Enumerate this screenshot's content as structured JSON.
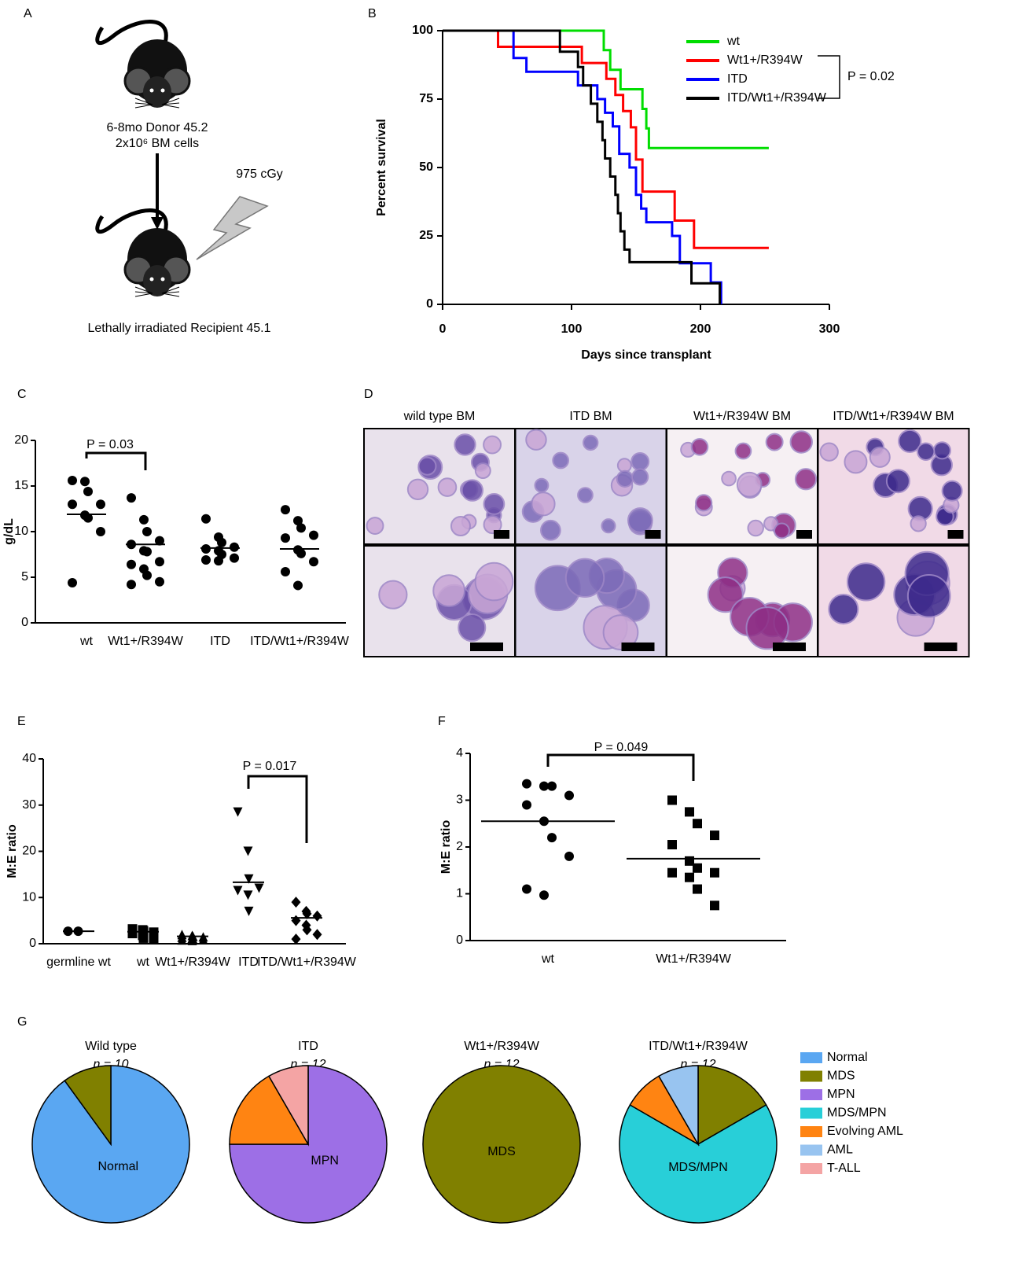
{
  "panel_labels": [
    "A",
    "B",
    "C",
    "D",
    "E",
    "F",
    "G"
  ],
  "schematic": {
    "donor": "6-8mo Donor 45.2",
    "cells": "2x10⁶ BM cells",
    "dose": "975 cGy",
    "recipient": "Lethally irradiated Recipient 45.1"
  },
  "micrographs": {
    "columns": [
      "wild type BM",
      "ITD BM",
      "Wt1+/R394W BM",
      "ITD/Wt1+/R394W BM"
    ]
  },
  "pie_legend": {
    "categories": [
      "Normal",
      "MDS",
      "MPN",
      "MDS/MPN",
      "Evolving AML",
      "AML",
      "T-ALL"
    ],
    "colors": [
      "#5aa7f2",
      "#808000",
      "#9d6fe6",
      "#28cfd8",
      "#ff8412",
      "#98c4f0",
      "#f4a4a4"
    ]
  },
  "chart_data": [
    {
      "type": "step",
      "xlabel": "Days since transplant",
      "ylabel": "Percent survival",
      "xlim": [
        0,
        300
      ],
      "xticks": [
        0,
        100,
        200,
        300
      ],
      "ylim": [
        0,
        100
      ],
      "yticks": [
        0,
        25,
        50,
        75,
        100
      ],
      "annotation": "P = 0.02",
      "series": [
        {
          "name": "wt",
          "color": "#00dd00",
          "x": [
            0,
            125,
            130,
            138,
            155,
            158,
            160,
            253
          ],
          "values": [
            100,
            92.9,
            85.7,
            78.6,
            71.4,
            64.3,
            57.1,
            57.1
          ]
        },
        {
          "name": "Wt1+/R394W",
          "color": "#ff0000",
          "x": [
            0,
            43,
            108,
            127,
            134,
            140,
            146,
            150,
            155,
            180,
            195,
            253
          ],
          "values": [
            100,
            94.1,
            88.2,
            82.4,
            76.5,
            70.6,
            64.7,
            52.9,
            41.2,
            30.6,
            20.6,
            20.6
          ]
        },
        {
          "name": "ITD",
          "color": "#0000ff",
          "x": [
            0,
            55,
            65,
            105,
            120,
            126,
            132,
            137,
            145,
            150,
            154,
            158,
            178,
            184,
            208,
            216
          ],
          "values": [
            100,
            90,
            85,
            80,
            75,
            70,
            65,
            55,
            50,
            40,
            35,
            30,
            25,
            15,
            8,
            0
          ]
        },
        {
          "name": "ITD/Wt1+/R394W",
          "color": "#000000",
          "x": [
            0,
            91,
            105,
            109,
            115,
            120,
            124,
            126,
            130,
            134,
            136,
            138,
            141,
            145,
            193,
            215
          ],
          "values": [
            100,
            92.3,
            86.7,
            80,
            73.3,
            66.7,
            60,
            53.3,
            46.7,
            40,
            33.3,
            26.7,
            20,
            15.4,
            7.7,
            0
          ]
        }
      ]
    },
    {
      "type": "strip",
      "ylabel": "g/dL",
      "ylim": [
        0,
        20
      ],
      "yticks": [
        0,
        5,
        10,
        15,
        20
      ],
      "categories": [
        "wt",
        "Wt1+/R394W",
        "ITD",
        "ITD/Wt1+/R394W"
      ],
      "values": [
        [
          15.6,
          15.5,
          14.4,
          13.0,
          13.0,
          11.8,
          11.5,
          10.0,
          4.4
        ],
        [
          13.7,
          11.3,
          10.0,
          9.0,
          8.6,
          7.9,
          7.8,
          6.7,
          6.4,
          5.9,
          5.2,
          4.5,
          4.2
        ],
        [
          11.4,
          9.4,
          8.8,
          8.3,
          8.1,
          7.9,
          7.5,
          7.1,
          6.9,
          6.8
        ],
        [
          12.4,
          11.2,
          10.4,
          9.6,
          9.3,
          8.0,
          7.6,
          6.7,
          5.6,
          4.1
        ]
      ],
      "means": [
        11.9,
        8.6,
        8.2,
        8.1
      ],
      "markers": [
        "circle",
        "circle",
        "circle",
        "circle"
      ],
      "color": "#000000",
      "annotation": "P = 0.03"
    },
    {
      "type": "strip",
      "ylabel": "M:E ratio",
      "ylim": [
        0,
        40
      ],
      "yticks": [
        0,
        10,
        20,
        30,
        40
      ],
      "categories": [
        "germline wt",
        "wt",
        "Wt1+/R394W",
        "ITD",
        "ITD/Wt1+/R394W"
      ],
      "values": [
        [
          2.7,
          2.7
        ],
        [
          3.2,
          3.0,
          2.8,
          2.5,
          2.2,
          1.8,
          1.2,
          1.0
        ],
        [
          2.0,
          1.8,
          1.6,
          1.5,
          1.4,
          1.2,
          1.0,
          0.9,
          0.8,
          0.7
        ],
        [
          28.5,
          20,
          14,
          12,
          11.5,
          10.5,
          7
        ],
        [
          9,
          7,
          6.5,
          6,
          5,
          4,
          3,
          2,
          1
        ]
      ],
      "means": [
        2.7,
        2.6,
        1.6,
        13.3,
        5.6
      ],
      "markers": [
        "circle",
        "square",
        "triangle",
        "triangle-down",
        "diamond"
      ],
      "color": "#000000",
      "annotation": "P = 0.017"
    },
    {
      "type": "strip",
      "ylabel": "M:E ratio",
      "ylim": [
        0,
        4
      ],
      "yticks": [
        0,
        1,
        2,
        3,
        4
      ],
      "categories": [
        "wt",
        "Wt1+/R394W"
      ],
      "values": [
        [
          3.35,
          3.3,
          3.3,
          3.1,
          2.9,
          2.55,
          2.2,
          1.8,
          1.1,
          0.97
        ],
        [
          3.0,
          2.75,
          2.5,
          2.25,
          2.05,
          1.7,
          1.55,
          1.45,
          1.45,
          1.35,
          1.1,
          0.75
        ]
      ],
      "means": [
        2.55,
        1.75
      ],
      "markers": [
        "circle",
        "square"
      ],
      "color": "#000000",
      "annotation": "P  = 0.049"
    },
    {
      "type": "pie",
      "title": "Wild type",
      "subtitle": "n = 10",
      "categories": [
        "Normal",
        "MDS"
      ],
      "values": [
        9,
        1
      ],
      "colors": [
        "#5aa7f2",
        "#808000"
      ]
    },
    {
      "type": "pie",
      "title": "ITD",
      "subtitle": "n = 12",
      "categories": [
        "MPN",
        "Evolving AML",
        "T-ALL"
      ],
      "values": [
        9,
        2,
        1
      ],
      "colors": [
        "#9d6fe6",
        "#ff8412",
        "#f4a4a4"
      ]
    },
    {
      "type": "pie",
      "title": "Wt1+/R394W",
      "subtitle": "n = 12",
      "categories": [
        "MDS"
      ],
      "values": [
        12
      ],
      "colors": [
        "#808000"
      ]
    },
    {
      "type": "pie",
      "title": "ITD/Wt1+/R394W",
      "subtitle": "n = 12",
      "categories": [
        "MDS",
        "MDS/MPN",
        "Evolving AML",
        "AML"
      ],
      "values": [
        2,
        8,
        1,
        1
      ],
      "colors": [
        "#808000",
        "#28cfd8",
        "#ff8412",
        "#98c4f0"
      ]
    }
  ]
}
